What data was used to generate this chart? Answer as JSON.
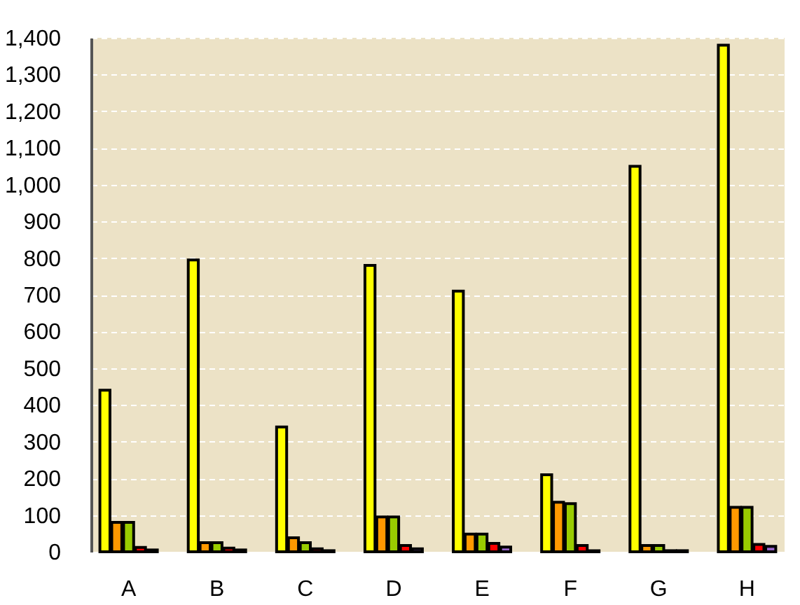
{
  "chart_data": {
    "type": "bar",
    "categories": [
      "A",
      "B",
      "C",
      "D",
      "E",
      "F",
      "G",
      "H"
    ],
    "series": [
      {
        "color": "#ffff00",
        "values": [
          440,
          795,
          340,
          780,
          710,
          210,
          1050,
          1380
        ]
      },
      {
        "color": "#ff9900",
        "values": [
          80,
          25,
          38,
          95,
          48,
          135,
          17,
          121
        ]
      },
      {
        "color": "#99cc00",
        "values": [
          80,
          25,
          25,
          95,
          48,
          131,
          17,
          121
        ]
      },
      {
        "color": "#ff0000",
        "values": [
          12,
          10,
          8,
          17,
          23,
          17,
          3,
          20
        ]
      },
      {
        "color": "#9966cc",
        "values": [
          5,
          5,
          3,
          8,
          13,
          3,
          3,
          15
        ]
      }
    ],
    "ylim": [
      0,
      1400
    ],
    "yticks": [
      0,
      100,
      200,
      300,
      400,
      500,
      600,
      700,
      800,
      900,
      {
        "value": 1000,
        "label": "1,000"
      },
      {
        "value": 1100,
        "label": "1,100"
      },
      {
        "value": 1200,
        "label": "1,200"
      },
      {
        "value": 1300,
        "label": "1,300"
      },
      {
        "value": 1400,
        "label": "1,400"
      }
    ],
    "grid": "y",
    "legend": false
  }
}
